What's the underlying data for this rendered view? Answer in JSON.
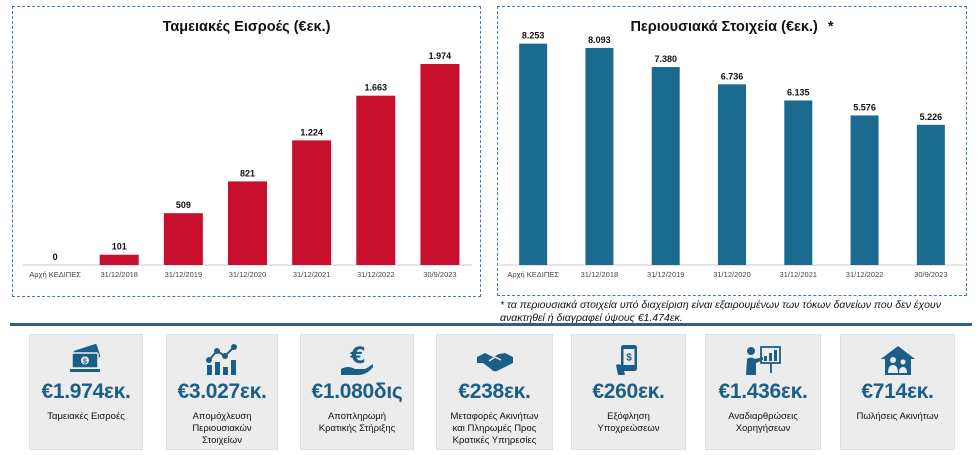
{
  "chart_data": [
    {
      "type": "bar",
      "title": "Ταμειακές Εισροές (€εκ.)",
      "categories": [
        "Αρχή ΚΕΔΙΠΕΣ",
        "31/12/2018",
        "31/12/2019",
        "31/12/2020",
        "31/12/2021",
        "31/12/2022",
        "30/9/2023"
      ],
      "values": [
        0,
        101,
        509,
        821,
        1224,
        1663,
        1974
      ],
      "value_labels": [
        "0",
        "101",
        "509",
        "821",
        "1.224",
        "1.663",
        "1.974"
      ],
      "ylim": [
        0,
        2200
      ],
      "grid": false,
      "color": "#c8102e"
    },
    {
      "type": "bar",
      "title": "Περιουσιακά Στοιχεία (€εκ.)",
      "title_marker": "*",
      "categories": [
        "Αρχή ΚΕΔΙΠΕΣ",
        "31/12/2018",
        "31/12/2019",
        "31/12/2020",
        "31/12/2021",
        "31/12/2022",
        "30/9/2023"
      ],
      "values": [
        8253,
        8093,
        7380,
        6736,
        6135,
        5576,
        5226
      ],
      "value_labels": [
        "8.253",
        "8.093",
        "7.380",
        "6.736",
        "6.135",
        "5.576",
        "5.226"
      ],
      "ylim": [
        0,
        8650
      ],
      "grid": false,
      "color": "#1b6a8f"
    }
  ],
  "footnote": "* τα περιουσιακά στοιχεία υπό διαχείριση είναι εξαιρουμένων των τόκων δανείων που δεν έχουν ανακτηθεί ή διαγραφεί  ύψους €1.474εκ.",
  "stats": [
    {
      "icon": "money-stack-icon",
      "value": "€1.974εκ.",
      "label": "Ταμειακές Εισροές"
    },
    {
      "icon": "network-chart-icon",
      "value": "€3.027εκ.",
      "label": "Απομόχλευση\nΠεριουσιακών\nΣτοιχείων"
    },
    {
      "icon": "euro-hand-icon",
      "value": "€1.080δις",
      "label": "Αποπληρωμή\nΚρατικής Στήριξης"
    },
    {
      "icon": "handshake-icon",
      "value": "€238εκ.",
      "label": "Μεταφορές Ακινήτων\nκαι Πληρωμές Προς\nΚρατικές Υπηρεσίες"
    },
    {
      "icon": "phone-payment-icon",
      "value": "€260εκ.",
      "label": "Εξόφληση\nΥποχρεώσεων"
    },
    {
      "icon": "presentation-icon",
      "value": "€1.436εκ.",
      "label": "Αναδιαρθρώσεις\nΧορηγήσεων"
    },
    {
      "icon": "house-family-icon",
      "value": "€714εκ.",
      "label": "Πωλήσεις Ακινήτων"
    }
  ],
  "colors": {
    "accent": "#1b5e87",
    "divider": "#2e5f8a",
    "box": "#ececec"
  }
}
